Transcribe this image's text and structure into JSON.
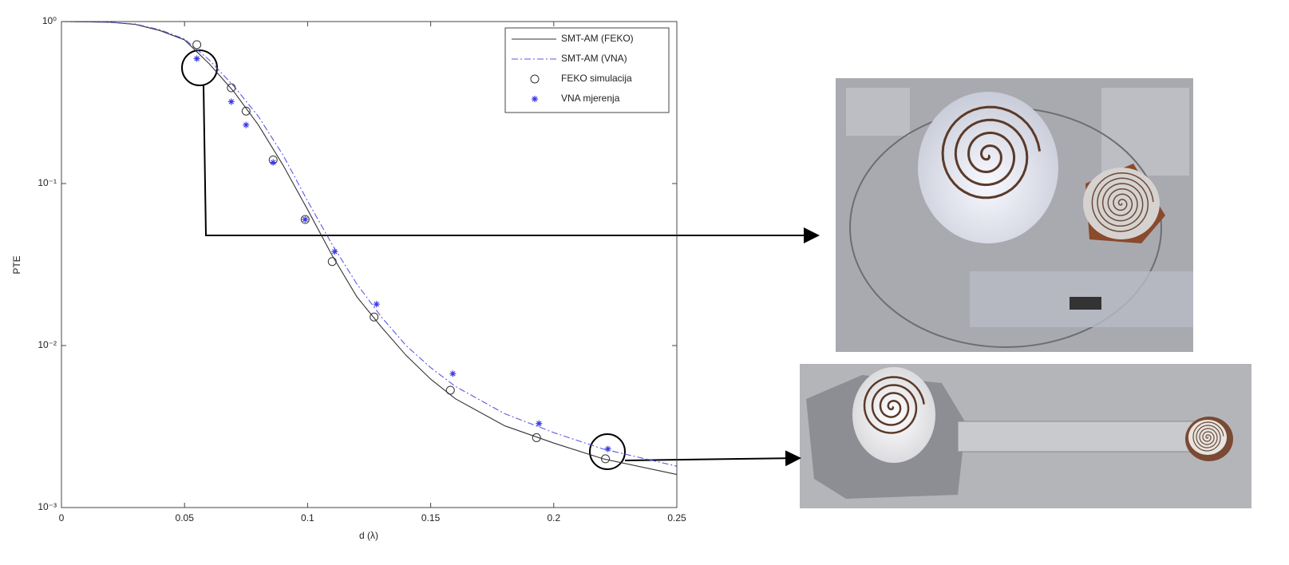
{
  "chart_data": {
    "type": "line",
    "yscale": "log",
    "grid": false,
    "legend": "upper right",
    "xlabel": "d (λ)",
    "ylabel": "PTE",
    "xlim": [
      0,
      0.25
    ],
    "xticks": [
      0,
      0.05,
      0.1,
      0.15,
      0.2,
      0.25
    ],
    "ylim": [
      0.001,
      1
    ],
    "yticks": [
      {
        "value": 0.001,
        "label": "10⁻³"
      },
      {
        "value": 0.01,
        "label": "10⁻²"
      },
      {
        "value": 0.1,
        "label": "10⁻¹"
      },
      {
        "value": 1,
        "label": "10⁰"
      }
    ],
    "series": [
      {
        "name": "SMT-AM (FEKO)",
        "color": "#333333",
        "linestyle": "solid",
        "x": [
          0,
          0.02,
          0.03,
          0.04,
          0.05,
          0.06,
          0.07,
          0.08,
          0.09,
          0.1,
          0.11,
          0.12,
          0.13,
          0.14,
          0.15,
          0.16,
          0.18,
          0.2,
          0.22,
          0.25
        ],
        "values": [
          1,
          0.99,
          0.96,
          0.88,
          0.77,
          0.55,
          0.37,
          0.23,
          0.13,
          0.069,
          0.036,
          0.02,
          0.013,
          0.0087,
          0.0062,
          0.0047,
          0.0032,
          0.0025,
          0.002,
          0.0016
        ]
      },
      {
        "name": "SMT-AM (VNA)",
        "color": "#5a5ae0",
        "linestyle": "dashdot",
        "x": [
          0,
          0.02,
          0.03,
          0.04,
          0.05,
          0.06,
          0.07,
          0.08,
          0.09,
          0.1,
          0.11,
          0.12,
          0.13,
          0.14,
          0.15,
          0.16,
          0.18,
          0.2,
          0.22,
          0.25
        ],
        "values": [
          1,
          0.99,
          0.965,
          0.89,
          0.78,
          0.58,
          0.4,
          0.26,
          0.15,
          0.078,
          0.042,
          0.024,
          0.015,
          0.01,
          0.0073,
          0.0056,
          0.0038,
          0.0029,
          0.0023,
          0.0018
        ]
      },
      {
        "name": "FEKO simulacija",
        "color": "#333333",
        "marker": "circle",
        "x": [
          0.055,
          0.069,
          0.075,
          0.086,
          0.099,
          0.11,
          0.127,
          0.158,
          0.193,
          0.221
        ],
        "values": [
          0.72,
          0.39,
          0.28,
          0.14,
          0.06,
          0.033,
          0.015,
          0.0053,
          0.0027,
          0.002
        ]
      },
      {
        "name": "VNA mjerenja",
        "color": "#3a3ae8",
        "marker": "star",
        "x": [
          0.055,
          0.069,
          0.075,
          0.086,
          0.099,
          0.111,
          0.128,
          0.159,
          0.194,
          0.222
        ],
        "values": [
          0.59,
          0.32,
          0.23,
          0.135,
          0.06,
          0.038,
          0.018,
          0.0067,
          0.0033,
          0.0023
        ]
      }
    ]
  }
}
